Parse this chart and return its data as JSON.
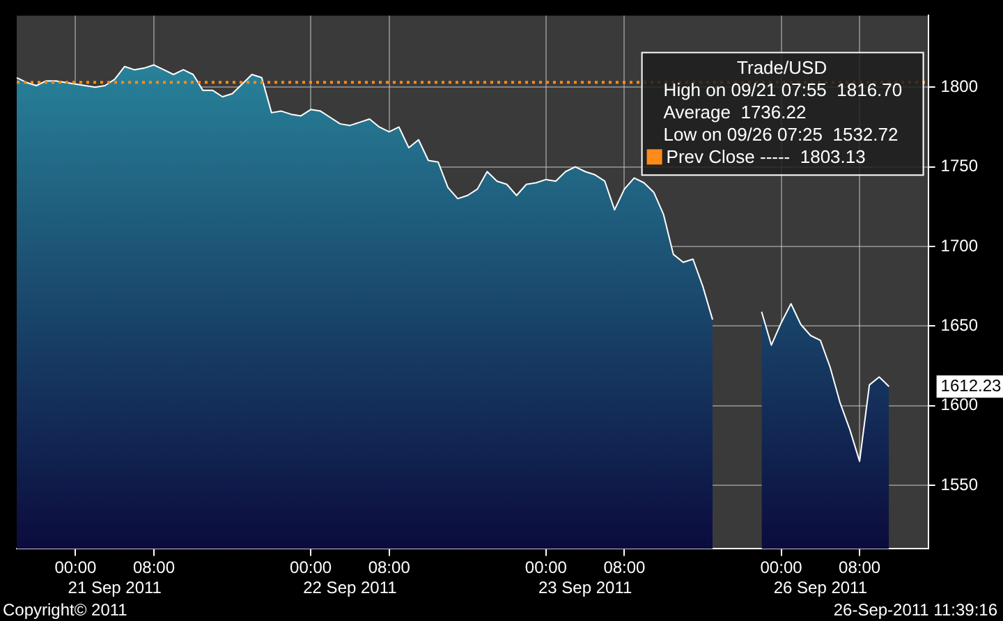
{
  "chart_data": {
    "type": "area",
    "legend_title": "Trade/USD",
    "categories": [
      null,
      null,
      null,
      null,
      null,
      null,
      "00:00",
      null,
      null,
      null,
      "21 Sep 2011",
      null,
      null,
      null,
      "08:00",
      null,
      null,
      null,
      null,
      null,
      null,
      null,
      null,
      null,
      null,
      null,
      null,
      null,
      null,
      null,
      "00:00",
      null,
      null,
      null,
      "22 Sep 2011",
      null,
      null,
      null,
      "08:00",
      null,
      null,
      null,
      null,
      null,
      null,
      null,
      null,
      null,
      null,
      null,
      null,
      null,
      null,
      null,
      "00:00",
      null,
      null,
      null,
      "23 Sep 2011",
      null,
      null,
      null,
      "08:00",
      null,
      null,
      null,
      null,
      null,
      null,
      null,
      null,
      null,
      null,
      null,
      null,
      null,
      null,
      null,
      "00:00",
      null,
      null,
      null,
      "26 Sep 2011",
      null,
      null,
      null,
      "08:00",
      null,
      null,
      null,
      null,
      null,
      null,
      null
    ],
    "series": [
      {
        "color": "#2b8ea3",
        "values": [
          1806,
          1803,
          1801,
          1804,
          1804,
          1803,
          1802,
          1801,
          1800,
          1801,
          1805,
          1813,
          1811,
          1812,
          1814,
          1811,
          1808,
          1811,
          1808,
          1798,
          1798,
          1794,
          1796,
          1802,
          1808,
          1806,
          1784,
          1785,
          1783,
          1782,
          1786,
          1785,
          1781,
          1777,
          1776,
          1778,
          1780,
          1775,
          1772,
          1775,
          1762,
          1767,
          1754,
          1753,
          1737,
          1730,
          1732,
          1736,
          1747,
          1741,
          1739,
          1732,
          1739,
          1740,
          1742,
          1741,
          1747,
          1750,
          1747,
          1745,
          1741,
          1723,
          1736,
          1743,
          1740,
          1734,
          1720,
          1695,
          1690,
          1692,
          1675,
          1654,
          null,
          null,
          null,
          null,
          1659,
          1638,
          1652,
          1664,
          1651,
          1644,
          1641,
          1624,
          1602,
          1585,
          1565,
          1613,
          1618,
          1612,
          null,
          null,
          null,
          null
        ]
      }
    ],
    "ylim": [
      1510,
      1845
    ],
    "yticks": [
      1550,
      1600,
      1650,
      1700,
      1750,
      1800
    ],
    "grid": true,
    "ref_lines": [
      {
        "axis": "y",
        "value": 1803.13,
        "label": "Prev Close -----  1803.13",
        "color": "#ff8c1a",
        "line_style": "dotted"
      }
    ],
    "annotations": [
      "High on 09/21 07:55  1816.70",
      "Average  1736.22",
      "Low on 09/26 07:25  1532.72",
      "1612.23",
      "Copyright© 2011",
      "26-Sep-2011 11:39:16"
    ]
  }
}
